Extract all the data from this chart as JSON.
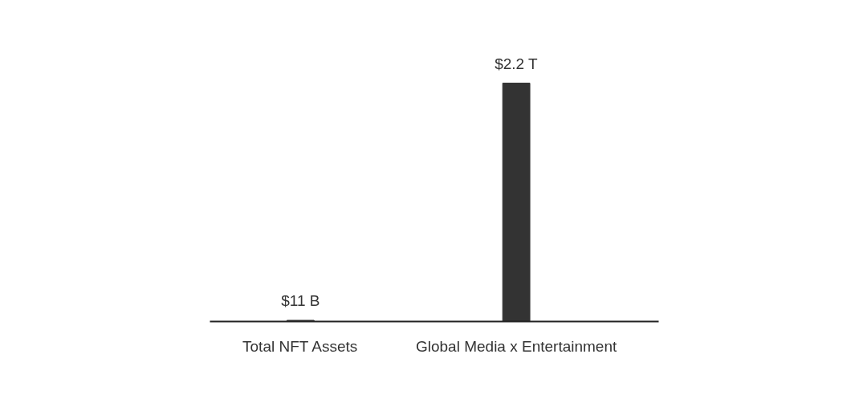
{
  "chart_data": {
    "type": "bar",
    "categories": [
      "Total NFT Assets",
      "Global Media x Entertainment"
    ],
    "values": [
      11000000000,
      2200000000000
    ],
    "color": "#333333",
    "value_labels": [
      "$11 B",
      "$2.2 T"
    ],
    "grid": false
  }
}
